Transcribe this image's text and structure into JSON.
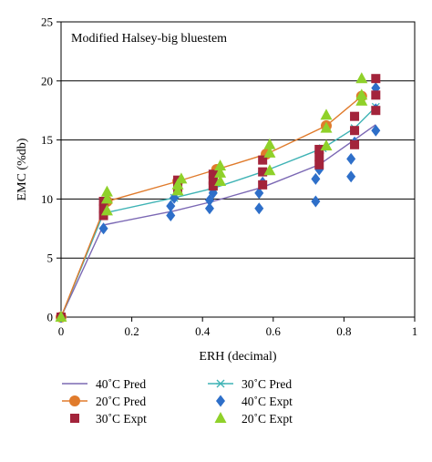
{
  "chart_data": {
    "type": "scatter",
    "title": "Modified Halsey-big bluestem",
    "xlabel": "ERH (decimal)",
    "ylabel": "EMC (%db)",
    "xlim": [
      0,
      1
    ],
    "ylim": [
      0,
      25
    ],
    "xticks": [
      "0",
      "0.2",
      "0.4",
      "0.6",
      "0.8",
      "1"
    ],
    "yticks": [
      "0",
      "5",
      "10",
      "15",
      "20",
      "25"
    ],
    "grid": "horizontal",
    "legend_position": "bottom",
    "series": [
      {
        "name": "40˚C Pred",
        "kind": "line",
        "color": "#7b68b4",
        "marker": "none",
        "points": [
          [
            0,
            0
          ],
          [
            0.12,
            7.8
          ],
          [
            0.32,
            9.0
          ],
          [
            0.43,
            9.8
          ],
          [
            0.57,
            11.0
          ],
          [
            0.73,
            12.9
          ],
          [
            0.89,
            16.3
          ]
        ]
      },
      {
        "name": "30˚C Pred",
        "kind": "line",
        "color": "#3fb3b5",
        "marker": "asterisk",
        "points": [
          [
            0,
            0
          ],
          [
            0.12,
            8.8
          ],
          [
            0.32,
            10.1
          ],
          [
            0.43,
            10.9
          ],
          [
            0.57,
            12.3
          ],
          [
            0.74,
            14.3
          ],
          [
            0.83,
            16.0
          ],
          [
            0.89,
            17.8
          ]
        ]
      },
      {
        "name": "20˚C Pred",
        "kind": "line",
        "color": "#e07b2c",
        "marker": "circle",
        "points": [
          [
            0,
            0
          ],
          [
            0.13,
            9.8
          ],
          [
            0.33,
            11.5
          ],
          [
            0.44,
            12.5
          ],
          [
            0.58,
            13.8
          ],
          [
            0.75,
            16.2
          ],
          [
            0.85,
            18.7
          ]
        ]
      },
      {
        "name": "40˚C Expt",
        "kind": "scatter",
        "color": "#2e6fc9",
        "marker": "diamond",
        "points": [
          [
            0,
            0
          ],
          [
            0.12,
            7.5
          ],
          [
            0.31,
            8.6
          ],
          [
            0.31,
            9.4
          ],
          [
            0.32,
            10.1
          ],
          [
            0.42,
            9.2
          ],
          [
            0.42,
            9.9
          ],
          [
            0.43,
            10.5
          ],
          [
            0.56,
            9.2
          ],
          [
            0.56,
            10.5
          ],
          [
            0.57,
            11.4
          ],
          [
            0.72,
            9.8
          ],
          [
            0.72,
            11.7
          ],
          [
            0.73,
            12.5
          ],
          [
            0.82,
            11.9
          ],
          [
            0.82,
            13.4
          ],
          [
            0.83,
            14.8
          ],
          [
            0.89,
            15.8
          ],
          [
            0.89,
            17.6
          ],
          [
            0.89,
            19.4
          ]
        ]
      },
      {
        "name": "30˚C Expt",
        "kind": "scatter",
        "color": "#a3243b",
        "marker": "square",
        "points": [
          [
            0,
            0
          ],
          [
            0.12,
            8.6
          ],
          [
            0.12,
            9.2
          ],
          [
            0.12,
            9.8
          ],
          [
            0.33,
            10.9
          ],
          [
            0.33,
            11.3
          ],
          [
            0.33,
            11.6
          ],
          [
            0.43,
            11.1
          ],
          [
            0.43,
            11.6
          ],
          [
            0.43,
            12.1
          ],
          [
            0.57,
            11.2
          ],
          [
            0.57,
            12.3
          ],
          [
            0.57,
            13.3
          ],
          [
            0.73,
            12.9
          ],
          [
            0.73,
            13.6
          ],
          [
            0.73,
            14.2
          ],
          [
            0.83,
            14.6
          ],
          [
            0.83,
            15.8
          ],
          [
            0.83,
            17.0
          ],
          [
            0.89,
            17.5
          ],
          [
            0.89,
            18.8
          ],
          [
            0.89,
            20.2
          ]
        ]
      },
      {
        "name": "20˚C Expt",
        "kind": "scatter",
        "color": "#8fd12a",
        "marker": "triangle",
        "points": [
          [
            0,
            0
          ],
          [
            0.13,
            9.0
          ],
          [
            0.13,
            10.0
          ],
          [
            0.13,
            10.6
          ],
          [
            0.33,
            10.7
          ],
          [
            0.33,
            11.2
          ],
          [
            0.34,
            11.7
          ],
          [
            0.45,
            11.5
          ],
          [
            0.45,
            12.2
          ],
          [
            0.45,
            12.8
          ],
          [
            0.59,
            12.4
          ],
          [
            0.59,
            13.9
          ],
          [
            0.59,
            14.6
          ],
          [
            0.75,
            14.5
          ],
          [
            0.75,
            16.0
          ],
          [
            0.75,
            17.1
          ],
          [
            0.85,
            18.3
          ],
          [
            0.85,
            18.8
          ],
          [
            0.85,
            20.2
          ]
        ]
      }
    ]
  }
}
